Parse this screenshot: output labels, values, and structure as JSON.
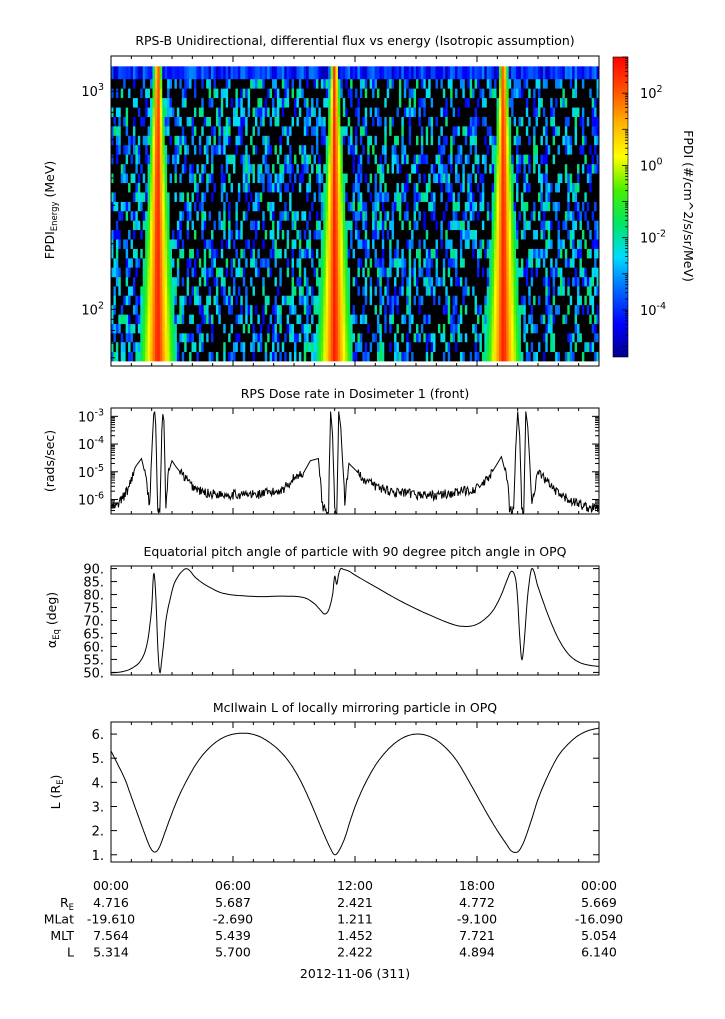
{
  "chart_data": [
    {
      "type": "heatmap",
      "title": "RPS-B  Unidirectional, differential flux vs energy (Isotropic assumption)",
      "ylabel": "FPDI",
      "ylabel_sub": "Energy",
      "ylabel_unit": " (MeV)",
      "yscale": "log",
      "ylim": [
        55,
        1450
      ],
      "y_ticks": [
        {
          "base": "10",
          "exp": "2",
          "value": 100
        },
        {
          "base": "10",
          "exp": "3",
          "value": 1000
        }
      ],
      "energy_bins_mev": [
        58,
        64,
        71,
        78,
        86,
        95,
        105,
        116,
        128,
        141,
        156,
        172,
        190,
        210,
        232,
        256,
        283,
        312,
        345,
        381,
        421,
        465,
        514,
        568,
        627,
        693,
        765,
        845,
        934,
        1032,
        1140,
        1300
      ],
      "bright_bands": [
        {
          "center_hours": 2.3,
          "peak_flux": 300
        },
        {
          "center_hours": 11.0,
          "peak_flux": 300
        },
        {
          "center_hours": 19.3,
          "peak_flux": 300
        }
      ],
      "colorbar": {
        "label": "FPDI (#/cm^2/s/sr/MeV)",
        "scale": "log",
        "range": [
          5e-06,
          1000
        ],
        "ticks": [
          {
            "base": "10",
            "exp": "2",
            "value": 100
          },
          {
            "base": "10",
            "exp": "0",
            "value": 1
          },
          {
            "base": "10",
            "exp": "-2",
            "value": 0.01
          },
          {
            "base": "10",
            "exp": "-4",
            "value": 0.0001
          }
        ],
        "colors": [
          "#00008c",
          "#0000ff",
          "#0066ff",
          "#00dcff",
          "#00e664",
          "#46f000",
          "#ffff00",
          "#ffb400",
          "#ff5000",
          "#ff0000"
        ]
      }
    },
    {
      "type": "line",
      "title": "RPS  Dose rate in Dosimeter 1 (front)",
      "ylabel": "(rads/sec)",
      "yscale": "log",
      "ylim": [
        3e-07,
        0.002
      ],
      "y_ticks": [
        {
          "base": "10",
          "exp": "-3",
          "value": 0.001
        },
        {
          "base": "10",
          "exp": "-4",
          "value": 0.0001
        },
        {
          "base": "10",
          "exp": "-5",
          "value": 1e-05
        },
        {
          "base": "10",
          "exp": "-6",
          "value": 1e-06
        }
      ],
      "x_hours": [
        0,
        0.3,
        0.8,
        1.2,
        1.5,
        1.7,
        1.9,
        2.0,
        2.1,
        2.15,
        2.2,
        2.3,
        2.4,
        2.5,
        2.55,
        2.6,
        2.65,
        2.7,
        2.8,
        3.0,
        3.2,
        3.5,
        4.0,
        4.5,
        5.0,
        6.0,
        7.0,
        8.0,
        8.5,
        9.0,
        9.5,
        9.8,
        10.2,
        10.4,
        10.6,
        10.7,
        10.8,
        10.9,
        11.0,
        11.1,
        11.2,
        11.3,
        11.5,
        11.7,
        12.0,
        12.5,
        13.0,
        14.0,
        15.0,
        16.0,
        17.0,
        18.0,
        18.5,
        18.9,
        19.2,
        19.5,
        19.6,
        19.8,
        19.9,
        20.0,
        20.1,
        20.2,
        20.3,
        20.4,
        20.5,
        20.7,
        21.0,
        21.5,
        22.0,
        22.5,
        23.0,
        23.5,
        24.0
      ],
      "y_rads_per_sec": [
        5e-07,
        6e-07,
        2e-06,
        1.5e-05,
        3e-05,
        7e-06,
        6e-07,
        4e-05,
        0.0012,
        0.0015,
        0.0005,
        4e-07,
        3e-07,
        0.0003,
        0.0012,
        0.0007,
        2e-05,
        4e-07,
        8e-06,
        2.5e-05,
        1.5e-05,
        8e-06,
        3e-06,
        1.8e-06,
        1.6e-06,
        1.5e-06,
        1.5e-06,
        1.8e-06,
        2.5e-06,
        6e-06,
        1e-05,
        2.5e-05,
        3e-05,
        6e-07,
        4e-07,
        5e-07,
        0.0015,
        0.0002,
        4e-07,
        3e-07,
        0.0015,
        0.0004,
        8e-07,
        2e-05,
        1.2e-05,
        5e-06,
        3e-06,
        1.8e-06,
        1.5e-06,
        1.4e-06,
        1.8e-06,
        2.5e-06,
        5e-06,
        1.5e-05,
        3.5e-05,
        5e-06,
        4e-07,
        4e-07,
        6e-05,
        0.0015,
        0.0002,
        4e-07,
        3e-07,
        0.0015,
        0.0004,
        8e-07,
        1e-05,
        4e-06,
        1.5e-06,
        1e-06,
        7e-07,
        5e-07,
        5e-07
      ]
    },
    {
      "type": "line",
      "title": "Equatorial pitch angle of particle with 90 degree pitch angle in OPQ",
      "ylabel": "α",
      "ylabel_sub": "Eq",
      "ylabel_unit": " (deg)",
      "ylim": [
        49,
        91
      ],
      "y_ticks": [
        "90.",
        "85.",
        "80.",
        "75.",
        "70.",
        "65.",
        "60.",
        "55.",
        "50."
      ],
      "x_hours": [
        0,
        0.5,
        1.0,
        1.5,
        1.8,
        2.0,
        2.1,
        2.2,
        2.3,
        2.4,
        2.5,
        2.6,
        2.7,
        2.9,
        3.1,
        3.3,
        3.5,
        3.7,
        3.9,
        4.1,
        4.4,
        4.8,
        5.5,
        6.5,
        7.5,
        8.5,
        9.5,
        10.0,
        10.3,
        10.5,
        10.7,
        10.9,
        11.0,
        11.1,
        11.2,
        11.3,
        11.4,
        11.7,
        12.0,
        13.0,
        14.0,
        15.0,
        16.0,
        16.7,
        17.2,
        17.8,
        18.3,
        18.8,
        19.2,
        19.5,
        19.7,
        19.9,
        20.0,
        20.1,
        20.2,
        20.3,
        20.5,
        20.7,
        21.0,
        21.5,
        22.0,
        22.5,
        23.0,
        23.5,
        24.0
      ],
      "y_deg": [
        49.8,
        50.2,
        51.5,
        55,
        62,
        75,
        88,
        80,
        60,
        50,
        55,
        62,
        70,
        78,
        84,
        87,
        89,
        90,
        89,
        87,
        85,
        83,
        80.5,
        79.5,
        79.2,
        79.4,
        78.8,
        76.5,
        74,
        72.5,
        74,
        80,
        87,
        84,
        88,
        90,
        89.8,
        89,
        87.5,
        83,
        78.5,
        74.5,
        71,
        68.8,
        67.8,
        68,
        70,
        74,
        80,
        86,
        89,
        86,
        78,
        64,
        55,
        60,
        80,
        90,
        83,
        72,
        63,
        57,
        54,
        52.8,
        52.3
      ]
    },
    {
      "type": "line",
      "title": "McIlwain L of locally mirroring particle in OPQ",
      "ylabel": "L",
      "ylabel_paren": " (R",
      "ylabel_sub": "E",
      "ylabel_close": ")",
      "ylim": [
        0.7,
        6.5
      ],
      "y_ticks": [
        "6.",
        "5.",
        "4.",
        "3.",
        "2.",
        "1."
      ],
      "x_hours": [
        0,
        0.3,
        0.7,
        1.0,
        1.3,
        1.6,
        1.8,
        2.0,
        2.2,
        2.4,
        2.6,
        2.9,
        3.3,
        3.8,
        4.3,
        4.8,
        5.3,
        5.8,
        6.3,
        6.8,
        7.3,
        7.8,
        8.3,
        8.8,
        9.3,
        9.8,
        10.2,
        10.5,
        10.8,
        11.0,
        11.2,
        11.5,
        11.8,
        12.1,
        12.5,
        13.0,
        13.5,
        14.0,
        14.5,
        15.0,
        15.5,
        16.0,
        16.5,
        17.0,
        17.5,
        18.0,
        18.5,
        19.0,
        19.4,
        19.7,
        20.0,
        20.2,
        20.4,
        20.7,
        21.0,
        21.5,
        22.0,
        22.5,
        23.0,
        23.5,
        24.0
      ],
      "y_re": [
        5.3,
        4.8,
        4.1,
        3.4,
        2.7,
        2.0,
        1.55,
        1.2,
        1.12,
        1.35,
        1.8,
        2.5,
        3.35,
        4.2,
        4.9,
        5.4,
        5.75,
        5.95,
        6.03,
        6.02,
        5.9,
        5.65,
        5.3,
        4.8,
        4.1,
        3.2,
        2.4,
        1.8,
        1.25,
        1.0,
        1.15,
        1.7,
        2.5,
        3.2,
        3.95,
        4.7,
        5.25,
        5.65,
        5.9,
        6.0,
        5.95,
        5.75,
        5.4,
        4.9,
        4.2,
        3.45,
        2.7,
        2.0,
        1.5,
        1.15,
        1.12,
        1.35,
        1.75,
        2.5,
        3.3,
        4.3,
        5.1,
        5.6,
        5.95,
        6.15,
        6.25
      ]
    }
  ],
  "time_axis": {
    "tick_labels": [
      "00:00",
      "06:00",
      "12:00",
      "18:00",
      "00:00"
    ],
    "date_label": "2012-11-06 (311)"
  },
  "ephemeris": {
    "rows": [
      {
        "label": "R",
        "label_sub": "E",
        "values": [
          "4.716",
          "5.687",
          "2.421",
          "4.772",
          "5.669"
        ]
      },
      {
        "label": "MLat",
        "label_sub": "",
        "values": [
          "-19.610",
          "-2.690",
          "1.211",
          "-9.100",
          "-16.090"
        ]
      },
      {
        "label": "MLT",
        "label_sub": "",
        "values": [
          "7.564",
          "5.439",
          "1.452",
          "7.721",
          "5.054"
        ]
      },
      {
        "label": "L",
        "label_sub": "",
        "values": [
          "5.314",
          "5.700",
          "2.422",
          "4.894",
          "6.140"
        ]
      }
    ]
  }
}
